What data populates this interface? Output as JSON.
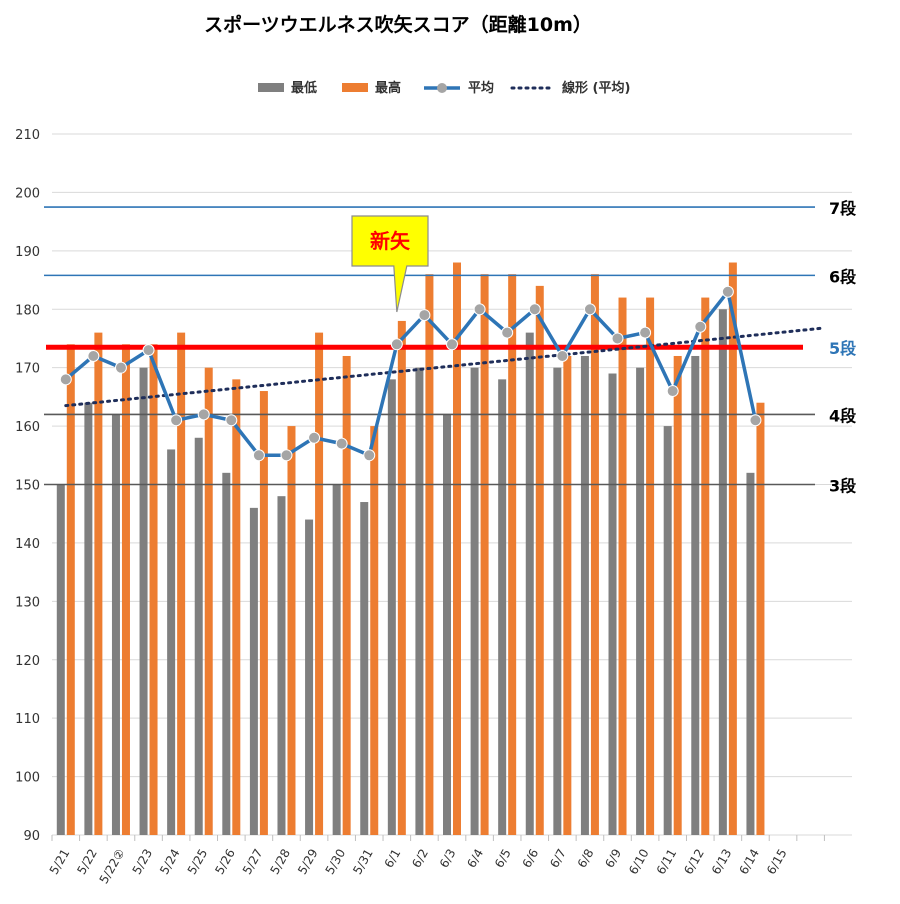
{
  "chart_data": {
    "type": "bar",
    "title": "スポーツウエルネス吹矢スコア（距離10m）",
    "categories": [
      "5/21",
      "5/22",
      "5/22②",
      "5/23",
      "5/24",
      "5/25",
      "5/26",
      "5/27",
      "5/28",
      "5/29",
      "5/30",
      "5/31",
      "6/1",
      "6/2",
      "6/3",
      "6/4",
      "6/5",
      "6/6",
      "6/7",
      "6/8",
      "6/9",
      "6/10",
      "6/11",
      "6/12",
      "6/13",
      "6/14",
      "6/15"
    ],
    "series": [
      {
        "name": "最低",
        "type": "bar",
        "color": "#7f7f7f",
        "values": [
          150,
          164,
          162,
          170,
          156,
          158,
          152,
          146,
          148,
          144,
          150,
          147,
          168,
          170,
          162,
          170,
          168,
          176,
          170,
          172,
          169,
          170,
          160,
          172,
          180,
          152,
          null
        ]
      },
      {
        "name": "最高",
        "type": "bar",
        "color": "#ed7d31",
        "values": [
          174,
          176,
          174,
          174,
          176,
          170,
          168,
          166,
          160,
          176,
          172,
          160,
          178,
          186,
          188,
          186,
          186,
          184,
          172,
          186,
          182,
          182,
          172,
          182,
          188,
          164,
          null
        ]
      },
      {
        "name": "平均",
        "type": "line",
        "color": "#2e75b6",
        "marker_color": "#a5a5a5",
        "values": [
          168,
          172,
          170,
          173,
          161,
          162,
          161,
          155,
          155,
          158,
          157,
          155,
          174,
          179,
          174,
          180,
          176,
          180,
          172,
          180,
          175,
          176,
          166,
          177,
          183,
          161,
          null
        ]
      },
      {
        "name": "線形 (平均)",
        "type": "trendline",
        "color": "#1f2e5a",
        "style": "dotted",
        "from": [
          0,
          163.5
        ],
        "to": [
          27.5,
          176.8
        ]
      }
    ],
    "ylim": [
      90,
      210
    ],
    "yticks": [
      90,
      100,
      110,
      120,
      130,
      140,
      150,
      160,
      170,
      180,
      190,
      200,
      210
    ],
    "grid": true,
    "legend_position": "top",
    "reference_lines": [
      {
        "label": "7段",
        "value": 197.5,
        "color": "#2e75b6",
        "label_color": "#000000"
      },
      {
        "label": "6段",
        "value": 185.8,
        "color": "#2e75b6",
        "label_color": "#000000"
      },
      {
        "label": "5段",
        "value": 173.5,
        "color": "#ff0000",
        "label_color": "#2e75b6"
      },
      {
        "label": "4段",
        "value": 162,
        "color": "#595959",
        "label_color": "#000000"
      },
      {
        "label": "3段",
        "value": 150,
        "color": "#595959",
        "label_color": "#000000"
      }
    ],
    "annotation": {
      "text": "新矢",
      "category": "6/1",
      "bg_color": "#ffff00",
      "text_color": "#ff0000"
    }
  }
}
